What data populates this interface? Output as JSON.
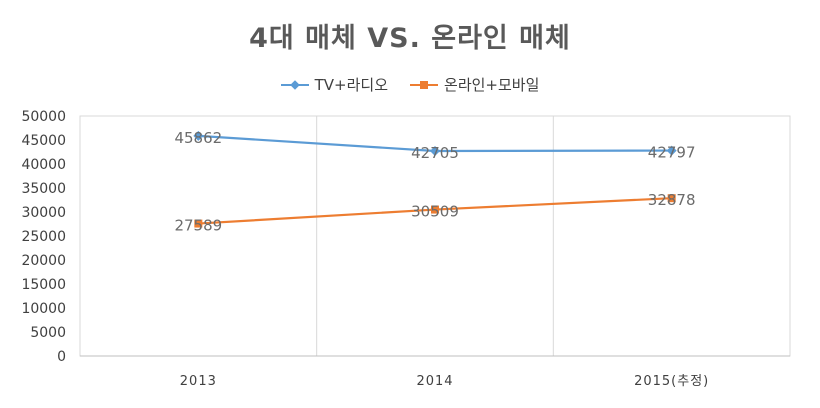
{
  "chart_data": {
    "type": "line",
    "title": "4대 매체 VS. 온라인 매체",
    "categories": [
      "2013",
      "2014",
      "2015(추정)"
    ],
    "ylim": [
      0,
      50000
    ],
    "yticks": [
      0,
      5000,
      10000,
      15000,
      20000,
      25000,
      30000,
      35000,
      40000,
      45000,
      50000
    ],
    "grid": "vertical",
    "legend": "top",
    "series": [
      {
        "name": "TV+라디오",
        "values": [
          45862,
          42705,
          42797
        ],
        "color": "#5b9bd5",
        "marker": "diamond"
      },
      {
        "name": "온라인+모바일",
        "values": [
          27589,
          30509,
          32878
        ],
        "color": "#ed7d31",
        "marker": "square"
      }
    ]
  }
}
